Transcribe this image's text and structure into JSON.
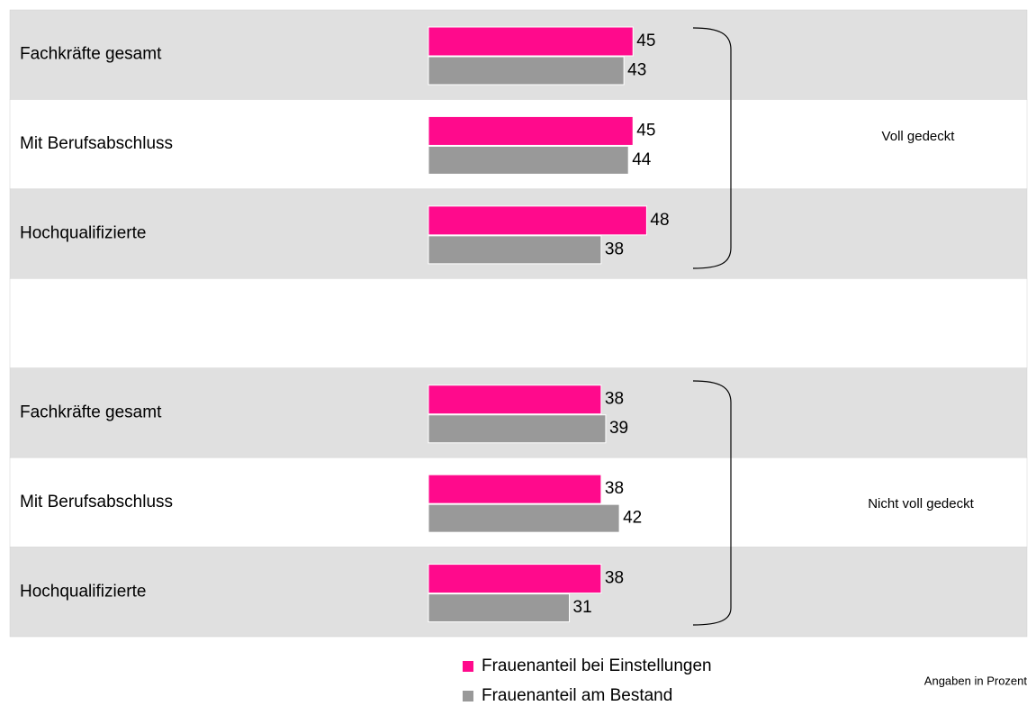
{
  "chart_data": {
    "type": "bar",
    "orientation": "horizontal",
    "categories": [
      "Fachkräfte gesamt",
      "Mit Berufsabschluss",
      "Hochqualifizierte",
      null,
      "Fachkräfte gesamt",
      "Mit Berufsabschluss",
      "Hochqualifizierte"
    ],
    "series": [
      {
        "name": "Frauenanteil bei Einstellungen",
        "color": "#ff0a8c",
        "values": [
          45,
          45,
          48,
          null,
          38,
          38,
          38
        ]
      },
      {
        "name": "Frauenanteil am Bestand",
        "color": "#999999",
        "values": [
          43,
          44,
          38,
          null,
          39,
          42,
          31
        ]
      }
    ],
    "xlim": [
      0,
      100
    ],
    "annotations": [
      "Voll gedeckt",
      "Nicht voll gedeckt"
    ],
    "note": "Angaben in Prozent",
    "legend": "bottom"
  }
}
